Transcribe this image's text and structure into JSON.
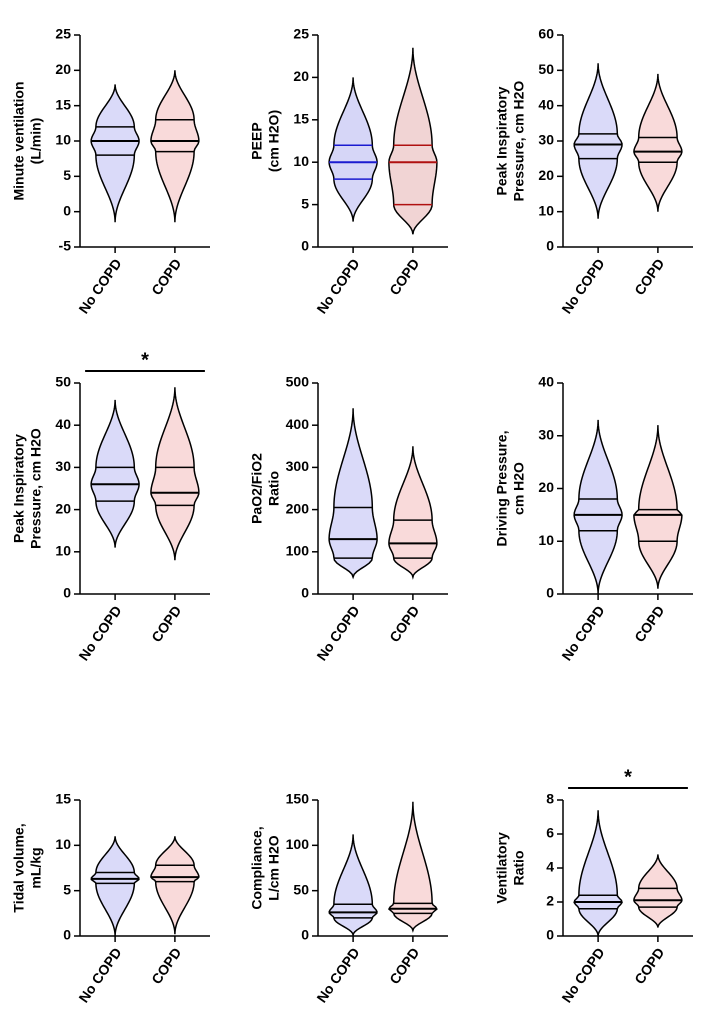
{
  "chart_data": [
    {
      "type": "violin",
      "ylabel": [
        "Minute ventilation",
        "(L/min)"
      ],
      "ylim": [
        -5,
        25
      ],
      "yticks": [
        -5,
        0,
        5,
        10,
        15,
        20,
        25
      ],
      "categories": [
        "No COPD",
        "COPD"
      ],
      "groups": [
        {
          "color": "#3030e0",
          "min": -1.5,
          "q1": 8,
          "median": 10,
          "q3": 12,
          "max": 18
        },
        {
          "color": "#e03030",
          "min": -1.5,
          "q1": 8.5,
          "median": 10,
          "q3": 13,
          "max": 20
        }
      ]
    },
    {
      "type": "violin",
      "ylabel": [
        "PEEP",
        "(cm H2O)"
      ],
      "ylim": [
        0,
        25
      ],
      "yticks": [
        0,
        5,
        10,
        15,
        20,
        25
      ],
      "categories": [
        "No COPD",
        "COPD"
      ],
      "groups": [
        {
          "color": "#1a1ad0",
          "min": 3,
          "q1": 8,
          "median": 10,
          "q3": 12,
          "max": 20
        },
        {
          "color": "#b01010",
          "min": 1.5,
          "q1": 5,
          "median": 10,
          "q3": 12,
          "max": 23.5
        }
      ]
    },
    {
      "type": "violin",
      "ylabel": [
        "Peak Inspiratory",
        "Pressure, cm H2O"
      ],
      "ylim": [
        0,
        60
      ],
      "yticks": [
        0,
        10,
        20,
        30,
        40,
        50,
        60
      ],
      "categories": [
        "No COPD",
        "COPD"
      ],
      "groups": [
        {
          "color": "#3030e0",
          "min": 8,
          "q1": 25,
          "median": 29,
          "q3": 32,
          "max": 52
        },
        {
          "color": "#e03030",
          "min": 10,
          "q1": 24,
          "median": 27,
          "q3": 31,
          "max": 49
        }
      ]
    },
    {
      "type": "violin",
      "ylabel": [
        "Peak Inspiratory",
        "Pressure, cm H2O"
      ],
      "ylim": [
        0,
        50
      ],
      "yticks": [
        0,
        10,
        20,
        30,
        40,
        50
      ],
      "categories": [
        "No COPD",
        "COPD"
      ],
      "annotation": "*",
      "groups": [
        {
          "color": "#3030e0",
          "min": 11,
          "q1": 22,
          "median": 26,
          "q3": 30,
          "max": 46
        },
        {
          "color": "#e03030",
          "min": 8,
          "q1": 21,
          "median": 24,
          "q3": 30,
          "max": 49
        }
      ]
    },
    {
      "type": "violin",
      "ylabel": [
        "PaO2/FiO2",
        "Ratio"
      ],
      "ylim": [
        0,
        500
      ],
      "yticks": [
        0,
        100,
        200,
        300,
        400,
        500
      ],
      "categories": [
        "No COPD",
        "COPD"
      ],
      "groups": [
        {
          "color": "#3030e0",
          "min": 40,
          "q1": 85,
          "median": 130,
          "q3": 205,
          "max": 440
        },
        {
          "color": "#e03030",
          "min": 40,
          "q1": 85,
          "median": 120,
          "q3": 175,
          "max": 350
        }
      ]
    },
    {
      "type": "violin",
      "ylabel": [
        "Driving  Pressure,",
        "cm  H2O"
      ],
      "ylim": [
        0,
        40
      ],
      "yticks": [
        0,
        10,
        20,
        30,
        40
      ],
      "categories": [
        "No COPD",
        "COPD"
      ],
      "groups": [
        {
          "color": "#3030e0",
          "min": 0,
          "q1": 12,
          "median": 15,
          "q3": 18,
          "max": 33
        },
        {
          "color": "#e03030",
          "min": 1,
          "q1": 10,
          "median": 15,
          "q3": 16,
          "max": 32
        }
      ]
    },
    {
      "type": "violin",
      "ylabel": [
        "Tidal volume,",
        "mL/kg"
      ],
      "ylim": [
        0,
        15
      ],
      "yticks": [
        0,
        5,
        10,
        15
      ],
      "categories": [
        "No COPD",
        "COPD"
      ],
      "groups": [
        {
          "color": "#3030e0",
          "min": 0,
          "q1": 5.8,
          "median": 6.3,
          "q3": 7,
          "max": 11
        },
        {
          "color": "#e03030",
          "min": 0.2,
          "q1": 6,
          "median": 6.5,
          "q3": 7.8,
          "max": 11
        }
      ]
    },
    {
      "type": "violin",
      "ylabel": [
        "Compliance,",
        "L/cm  H2O"
      ],
      "ylim": [
        0,
        150
      ],
      "yticks": [
        0,
        50,
        100,
        150
      ],
      "categories": [
        "No COPD",
        "COPD"
      ],
      "groups": [
        {
          "color": "#3030e0",
          "min": 1,
          "q1": 20,
          "median": 26,
          "q3": 35,
          "max": 112
        },
        {
          "color": "#e03030",
          "min": 6,
          "q1": 25,
          "median": 30,
          "q3": 36,
          "max": 148
        }
      ]
    },
    {
      "type": "violin",
      "ylabel": [
        "Ventilatory",
        "Ratio"
      ],
      "ylim": [
        0,
        8
      ],
      "yticks": [
        0,
        2,
        4,
        6,
        8
      ],
      "categories": [
        "No COPD",
        "COPD"
      ],
      "annotation": "*",
      "groups": [
        {
          "color": "#3030e0",
          "min": 0,
          "q1": 1.6,
          "median": 2,
          "q3": 2.4,
          "max": 7.4
        },
        {
          "color": "#e03030",
          "min": 0.5,
          "q1": 1.7,
          "median": 2.1,
          "q3": 2.8,
          "max": 4.8
        }
      ]
    }
  ]
}
